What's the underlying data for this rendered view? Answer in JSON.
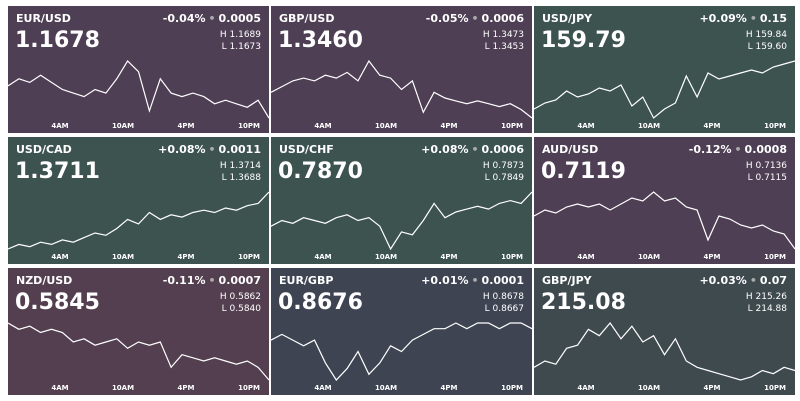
{
  "tiles": [
    {
      "pair": "EUR/USD",
      "price": "1.1678",
      "change_pct": "-0.04%",
      "change": "0.0005",
      "high": "1.1689",
      "low": "1.1673",
      "color": "#4e3f54",
      "sparkline": [
        1.1682,
        1.1684,
        1.1683,
        1.1685,
        1.1683,
        1.1681,
        1.168,
        1.1679,
        1.1681,
        1.168,
        1.1684,
        1.1689,
        1.1686,
        1.1675,
        1.1684,
        1.168,
        1.1679,
        1.168,
        1.1679,
        1.1677,
        1.1678,
        1.1677,
        1.1676,
        1.1678,
        1.1673
      ]
    },
    {
      "pair": "GBP/USD",
      "price": "1.3460",
      "change_pct": "-0.05%",
      "change": "0.0006",
      "high": "1.3473",
      "low": "1.3453",
      "color": "#4e3f54",
      "sparkline": [
        1.3462,
        1.3464,
        1.3466,
        1.3467,
        1.3466,
        1.3468,
        1.3467,
        1.3469,
        1.3466,
        1.3473,
        1.3468,
        1.3467,
        1.3463,
        1.3466,
        1.3455,
        1.3462,
        1.346,
        1.3459,
        1.3458,
        1.3459,
        1.3458,
        1.3457,
        1.3458,
        1.3456,
        1.3453
      ]
    },
    {
      "pair": "USD/JPY",
      "price": "159.79",
      "change_pct": "+0.09%",
      "change": "0.15",
      "high": "159.84",
      "low": "159.60",
      "color": "#3d5350",
      "sparkline": [
        159.64,
        159.66,
        159.67,
        159.7,
        159.68,
        159.69,
        159.71,
        159.7,
        159.72,
        159.65,
        159.68,
        159.61,
        159.64,
        159.66,
        159.75,
        159.68,
        159.76,
        159.74,
        159.75,
        159.76,
        159.77,
        159.76,
        159.78,
        159.79,
        159.8
      ]
    },
    {
      "pair": "USD/CAD",
      "price": "1.3711",
      "change_pct": "+0.08%",
      "change": "0.0011",
      "high": "1.3714",
      "low": "1.3688",
      "color": "#3d5350",
      "sparkline": [
        1.3689,
        1.3691,
        1.369,
        1.3692,
        1.3691,
        1.3693,
        1.3692,
        1.3694,
        1.3696,
        1.3695,
        1.3698,
        1.3702,
        1.37,
        1.3705,
        1.3702,
        1.3704,
        1.3703,
        1.3705,
        1.3706,
        1.3705,
        1.3707,
        1.3706,
        1.3708,
        1.3709,
        1.3714
      ]
    },
    {
      "pair": "USD/CHF",
      "price": "0.7870",
      "change_pct": "+0.08%",
      "change": "0.0006",
      "high": "0.7873",
      "low": "0.7849",
      "color": "#3d5350",
      "sparkline": [
        0.7858,
        0.786,
        0.7859,
        0.7861,
        0.786,
        0.7859,
        0.7861,
        0.7862,
        0.786,
        0.7861,
        0.7858,
        0.785,
        0.7856,
        0.7855,
        0.786,
        0.7866,
        0.7861,
        0.7863,
        0.7864,
        0.7865,
        0.7864,
        0.7866,
        0.7867,
        0.7866,
        0.787
      ]
    },
    {
      "pair": "AUD/USD",
      "price": "0.7119",
      "change_pct": "-0.12%",
      "change": "0.0008",
      "high": "0.7136",
      "low": "0.7115",
      "color": "#4e3f54",
      "sparkline": [
        0.7126,
        0.7128,
        0.7127,
        0.7129,
        0.713,
        0.7129,
        0.713,
        0.7128,
        0.713,
        0.7132,
        0.7131,
        0.7134,
        0.7131,
        0.7132,
        0.7129,
        0.7128,
        0.7118,
        0.7126,
        0.7125,
        0.7123,
        0.7122,
        0.7123,
        0.7121,
        0.712,
        0.7115
      ]
    },
    {
      "pair": "NZD/USD",
      "price": "0.5845",
      "change_pct": "-0.11%",
      "change": "0.0007",
      "high": "0.5862",
      "low": "0.5840",
      "color": "#533f4f",
      "sparkline": [
        0.5858,
        0.5856,
        0.5857,
        0.5855,
        0.5856,
        0.5855,
        0.5852,
        0.5853,
        0.5851,
        0.5852,
        0.5853,
        0.585,
        0.5852,
        0.5851,
        0.5852,
        0.5844,
        0.5848,
        0.5847,
        0.5846,
        0.5847,
        0.5846,
        0.5845,
        0.5846,
        0.5844,
        0.584
      ]
    },
    {
      "pair": "EUR/GBP",
      "price": "0.8676",
      "change_pct": "+0.01%",
      "change": "0.0001",
      "high": "0.8678",
      "low": "0.8667",
      "color": "#3f4452",
      "sparkline": [
        0.8674,
        0.8675,
        0.8674,
        0.8673,
        0.8674,
        0.867,
        0.8667,
        0.8669,
        0.8672,
        0.8668,
        0.867,
        0.8673,
        0.8672,
        0.8674,
        0.8675,
        0.8676,
        0.8676,
        0.8677,
        0.8676,
        0.8677,
        0.8677,
        0.8676,
        0.8677,
        0.8677,
        0.8676
      ]
    },
    {
      "pair": "GBP/JPY",
      "price": "215.08",
      "change_pct": "+0.03%",
      "change": "0.07",
      "high": "215.26",
      "low": "214.88",
      "color": "#3f4a4f",
      "sparkline": [
        214.96,
        214.98,
        214.97,
        215.02,
        215.03,
        215.08,
        215.06,
        215.1,
        215.05,
        215.09,
        215.04,
        215.06,
        215.0,
        215.05,
        214.98,
        214.96,
        214.95,
        214.94,
        214.93,
        214.92,
        214.93,
        214.95,
        214.94,
        214.96,
        214.95
      ]
    }
  ],
  "time_labels": [
    "4AM",
    "10AM",
    "4PM",
    "10PM"
  ]
}
